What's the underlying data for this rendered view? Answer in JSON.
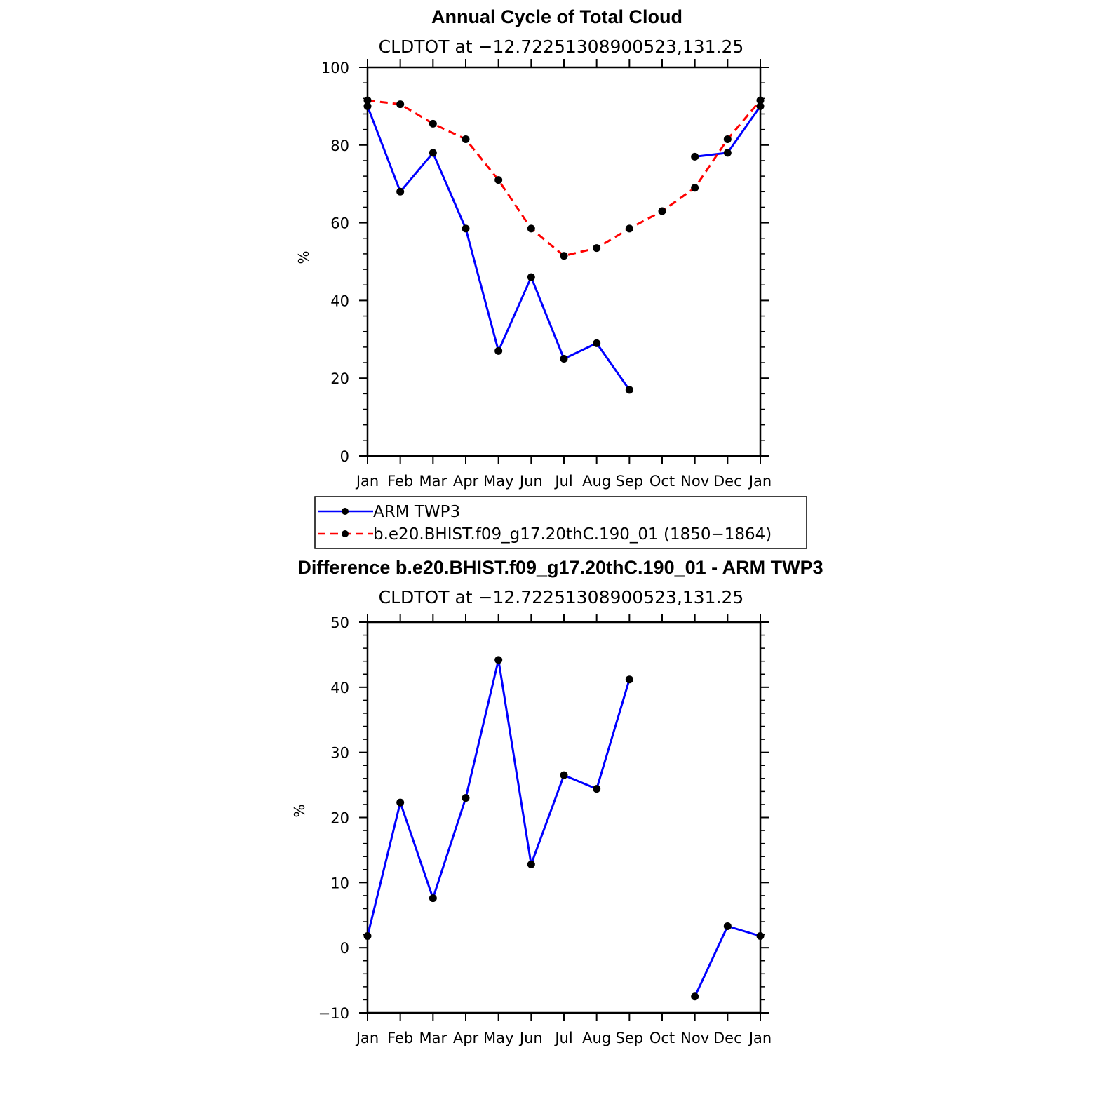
{
  "chart_data": [
    {
      "type": "line",
      "title": "Annual Cycle of Total Cloud",
      "subtitle": "CLDTOT at −12.72251308900523,131.25",
      "xlabel": "",
      "ylabel": "%",
      "ylim": [
        0,
        100
      ],
      "yticks": [
        0,
        20,
        40,
        60,
        80,
        100
      ],
      "categories": [
        "Jan",
        "Feb",
        "Mar",
        "Apr",
        "May",
        "Jun",
        "Jul",
        "Aug",
        "Sep",
        "Oct",
        "Nov",
        "Dec",
        "Jan"
      ],
      "grid": false,
      "legend_position": "bottom",
      "series": [
        {
          "name": "ARM TWP3",
          "color": "#0000ff",
          "dash": "solid",
          "values": [
            90,
            68,
            78,
            58.5,
            27,
            46,
            25,
            29,
            17,
            null,
            77,
            78,
            90
          ]
        },
        {
          "name": "b.e20.BHIST.f09_g17.20thC.190_01 (1850−1864)",
          "color": "#ff0000",
          "dash": "dashed",
          "values": [
            91.5,
            90.5,
            85.5,
            81.5,
            71,
            58.5,
            51.5,
            53.5,
            58.5,
            63,
            69,
            81.5,
            91.5
          ]
        }
      ]
    },
    {
      "type": "line",
      "title": "Difference b.e20.BHIST.f09_g17.20thC.190_01 - ARM TWP3",
      "subtitle": "CLDTOT at −12.72251308900523,131.25",
      "xlabel": "",
      "ylabel": "%",
      "ylim": [
        -10,
        50
      ],
      "yticks": [
        -10,
        0,
        10,
        20,
        30,
        40,
        50
      ],
      "ytick_labels": [
        "−10",
        "0",
        "10",
        "20",
        "30",
        "40",
        "50"
      ],
      "categories": [
        "Jan",
        "Feb",
        "Mar",
        "Apr",
        "May",
        "Jun",
        "Jul",
        "Aug",
        "Sep",
        "Oct",
        "Nov",
        "Dec",
        "Jan"
      ],
      "grid": false,
      "series": [
        {
          "color": "#0000ff",
          "dash": "solid",
          "values": [
            1.8,
            22.3,
            7.6,
            23,
            44.2,
            12.8,
            26.5,
            24.4,
            41.2,
            null,
            -7.5,
            3.3,
            1.8
          ]
        }
      ]
    }
  ]
}
